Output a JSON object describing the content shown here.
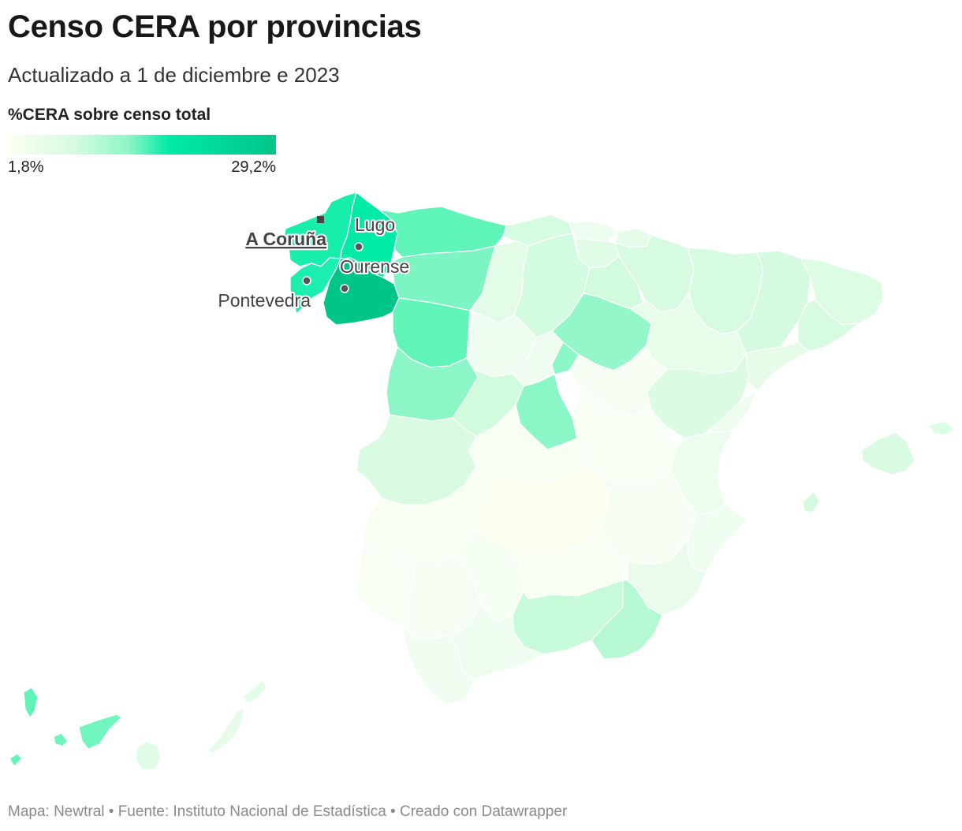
{
  "title": "Censo CERA por provincias",
  "subtitle": "Actualizado a 1 de diciembre e 2023",
  "legend": {
    "title": "%CERA sobre censo total",
    "min_label": "1,8%",
    "max_label": "29,2%",
    "min": 1.8,
    "max": 29.2,
    "colors": [
      "#fdfff0",
      "#d5fbe0",
      "#8ff5c7",
      "#00eba6",
      "#00c488"
    ]
  },
  "cities": {
    "coruna": "A Coruña",
    "lugo": "Lugo",
    "ourense": "Ourense",
    "pontevedra": "Pontevedra"
  },
  "footer": "Mapa: Newtral • Fuente: Instituto Nacional de Estadística • Creado con Datawrapper"
}
